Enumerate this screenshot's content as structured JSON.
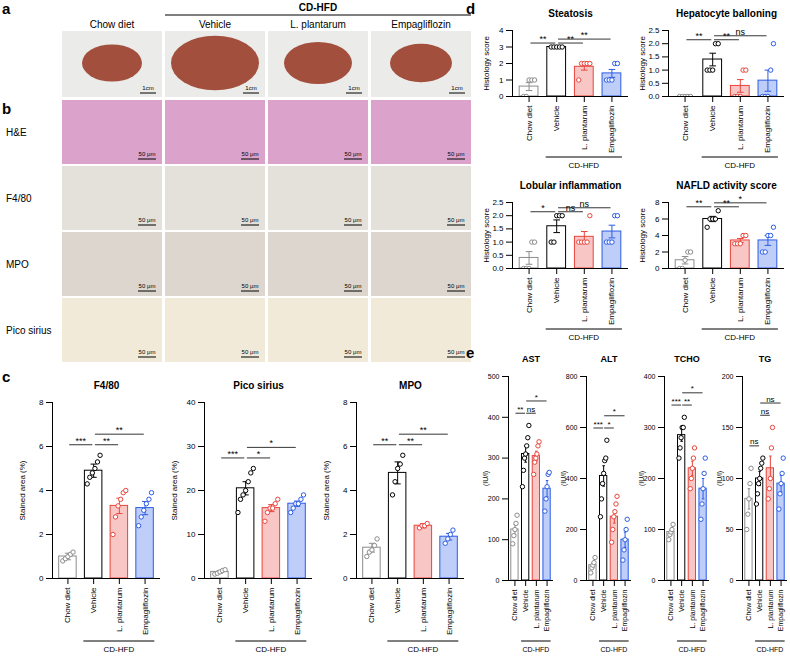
{
  "panel_a": {
    "label": "a",
    "columns": [
      "Chow diet",
      "Vehicle",
      "L. plantarum",
      "Empagliflozin"
    ],
    "group": {
      "label": "CD-HFD",
      "columns": [
        "Vehicle",
        "L. plantarum",
        "Empagliflozin"
      ]
    },
    "scale_bar": "1cm"
  },
  "panel_b": {
    "label": "b",
    "rows": [
      "H&E",
      "F4/80",
      "MPO",
      "Pico sirius"
    ],
    "scale_bar": "50 μm"
  },
  "chart_data": [
    {
      "panel": "c",
      "type": "bar",
      "title": "F4/80",
      "y_label": "Stained area (%)",
      "categories": [
        "Chow diet",
        "Vehicle",
        "L. plantarum",
        "Empagliflozin"
      ],
      "group": {
        "label": "CD-HFD",
        "categories": [
          "Vehicle",
          "L. plantarum",
          "Empagliflozin"
        ]
      },
      "colors": [
        "#8c8c8c",
        "#000000",
        "#e8453c",
        "#2b5ce6"
      ],
      "values": [
        1.0,
        4.9,
        3.3,
        3.2
      ],
      "errors": [
        0.15,
        0.3,
        0.35,
        0.3
      ],
      "points": [
        [
          0.8,
          0.9,
          1.0,
          1.1,
          1.2
        ],
        [
          4.3,
          4.6,
          4.8,
          5.0,
          5.3,
          5.6
        ],
        [
          2.0,
          2.8,
          3.3,
          3.6,
          3.9,
          4.0
        ],
        [
          2.4,
          2.8,
          3.1,
          3.4,
          3.6,
          3.9
        ]
      ],
      "significance": [
        {
          "pair": [
            "Chow diet",
            "Vehicle"
          ],
          "label": "***"
        },
        {
          "pair": [
            "Vehicle",
            "L. plantarum"
          ],
          "label": "**"
        },
        {
          "pair": [
            "Vehicle",
            "Empagliflozin"
          ],
          "label": "**"
        }
      ],
      "ylim": [
        0,
        8
      ],
      "yticks": [
        0,
        2,
        4,
        6,
        8
      ]
    },
    {
      "panel": "c",
      "type": "bar",
      "title": "Pico sirius",
      "y_label": "Stained area (%)",
      "categories": [
        "Chow diet",
        "Vehicle",
        "L. plantarum",
        "Empagliflozin"
      ],
      "group": {
        "label": "CD-HFD",
        "categories": [
          "Vehicle",
          "L. plantarum",
          "Empagliflozin"
        ]
      },
      "colors": [
        "#8c8c8c",
        "#000000",
        "#e8453c",
        "#2b5ce6"
      ],
      "values": [
        1.5,
        20.5,
        16,
        17
      ],
      "errors": [
        0.3,
        1.5,
        0.8,
        0.6
      ],
      "points": [
        [
          1.0,
          1.2,
          1.5,
          1.8,
          2.0
        ],
        [
          15,
          18,
          19,
          20,
          22,
          24,
          25
        ],
        [
          13,
          15,
          16,
          16,
          17,
          18
        ],
        [
          15,
          16,
          17,
          17,
          18,
          19
        ]
      ],
      "significance": [
        {
          "pair": [
            "Chow diet",
            "Vehicle"
          ],
          "label": "***"
        },
        {
          "pair": [
            "Vehicle",
            "L. plantarum"
          ],
          "label": "*"
        },
        {
          "pair": [
            "Vehicle",
            "Empagliflozin"
          ],
          "label": "*"
        }
      ],
      "ylim": [
        0,
        40
      ],
      "yticks": [
        0,
        10,
        20,
        30,
        40
      ]
    },
    {
      "panel": "c",
      "type": "bar",
      "title": "MPO",
      "y_label": "Stained area (%)",
      "categories": [
        "Chow diet",
        "Vehicle",
        "L. plantarum",
        "Empagliflozin"
      ],
      "group": {
        "label": "CD-HFD",
        "categories": [
          "Vehicle",
          "L. plantarum",
          "Empagliflozin"
        ]
      },
      "colors": [
        "#8c8c8c",
        "#000000",
        "#e8453c",
        "#2b5ce6"
      ],
      "values": [
        1.4,
        4.8,
        2.4,
        1.9
      ],
      "errors": [
        0.2,
        0.5,
        0.1,
        0.15
      ],
      "points": [
        [
          1.0,
          1.2,
          1.3,
          1.5,
          1.8
        ],
        [
          3.8,
          4.4,
          5.0,
          5.2,
          5.6
        ],
        [
          2.3,
          2.4,
          2.4,
          2.5
        ],
        [
          1.6,
          1.8,
          2.0,
          2.2
        ]
      ],
      "significance": [
        {
          "pair": [
            "Chow diet",
            "Vehicle"
          ],
          "label": "**"
        },
        {
          "pair": [
            "Vehicle",
            "L. plantarum"
          ],
          "label": "**"
        },
        {
          "pair": [
            "Vehicle",
            "Empagliflozin"
          ],
          "label": "**"
        }
      ],
      "ylim": [
        0,
        8
      ],
      "yticks": [
        0,
        2,
        4,
        6,
        8
      ]
    },
    {
      "panel": "d",
      "type": "bar",
      "title": "Steatosis",
      "y_label": "Histology score",
      "categories": [
        "Chow diet",
        "Vehicle",
        "L. plantarum",
        "Empagliflozin"
      ],
      "group": {
        "label": "CD-HFD",
        "categories": [
          "Vehicle",
          "L. plantarum",
          "Empagliflozin"
        ]
      },
      "colors": [
        "#8c8c8c",
        "#000000",
        "#e8453c",
        "#2b5ce6"
      ],
      "values": [
        0.6,
        3.0,
        1.8,
        1.4
      ],
      "errors": [
        0.24,
        0,
        0.2,
        0.24
      ],
      "points": [
        [
          0,
          0,
          1,
          1,
          1
        ],
        [
          3,
          3,
          3,
          3,
          3
        ],
        [
          1,
          2,
          2,
          2,
          2
        ],
        [
          1,
          1,
          1,
          2,
          2
        ]
      ],
      "significance": [
        {
          "pair": [
            "Chow diet",
            "Vehicle"
          ],
          "label": "**"
        },
        {
          "pair": [
            "Vehicle",
            "L. plantarum"
          ],
          "label": "**"
        },
        {
          "pair": [
            "Vehicle",
            "Empagliflozin"
          ],
          "label": "**"
        }
      ],
      "ylim": [
        0,
        4
      ],
      "yticks": [
        0,
        1,
        2,
        3,
        4
      ]
    },
    {
      "panel": "d",
      "type": "bar",
      "title": "Hepatocyte balloning",
      "y_label": "Histology score",
      "categories": [
        "Chow diet",
        "Vehicle",
        "L. plantarum",
        "Empagliflozin"
      ],
      "group": {
        "label": "CD-HFD",
        "categories": [
          "Vehicle",
          "L. plantarum",
          "Empagliflozin"
        ]
      },
      "colors": [
        "#8c8c8c",
        "#000000",
        "#e8453c",
        "#2b5ce6"
      ],
      "values": [
        0,
        1.4,
        0.4,
        0.6
      ],
      "errors": [
        0,
        0.24,
        0.24,
        0.4
      ],
      "points": [
        [
          0,
          0,
          0,
          0,
          0
        ],
        [
          1,
          1,
          1,
          2,
          2
        ],
        [
          0,
          0,
          0,
          1,
          1
        ],
        [
          0,
          0,
          0,
          1,
          2
        ]
      ],
      "significance": [
        {
          "pair": [
            "Chow diet",
            "Vehicle"
          ],
          "label": "**"
        },
        {
          "pair": [
            "Vehicle",
            "L. plantarum"
          ],
          "label": "**"
        },
        {
          "pair": [
            "Vehicle",
            "Empagliflozin"
          ],
          "label": "ns"
        }
      ],
      "ylim": [
        0,
        2.5
      ],
      "yticks": [
        {
          "value": 0,
          "label": "0.0"
        },
        {
          "value": 0.5,
          "label": "0.5"
        },
        {
          "value": 1,
          "label": "1.0"
        },
        {
          "value": 1.5,
          "label": "1.5"
        },
        {
          "value": 2,
          "label": "2.0"
        },
        {
          "value": 2.5,
          "label": "2.5"
        }
      ]
    },
    {
      "panel": "d",
      "type": "bar",
      "title": "Lobular inflammation",
      "y_label": "Histology score",
      "categories": [
        "Chow diet",
        "Vehicle",
        "L. plantarum",
        "Empagliflozin"
      ],
      "group": {
        "label": "CD-HFD",
        "categories": [
          "Vehicle",
          "L. plantarum",
          "Empagliflozin"
        ]
      },
      "colors": [
        "#8c8c8c",
        "#000000",
        "#e8453c",
        "#2b5ce6"
      ],
      "values": [
        0.4,
        1.6,
        1.2,
        1.4
      ],
      "errors": [
        0.24,
        0.24,
        0.2,
        0.24
      ],
      "points": [
        [
          0,
          0,
          0,
          1,
          1
        ],
        [
          1,
          1,
          2,
          2,
          2
        ],
        [
          1,
          1,
          1,
          1,
          2
        ],
        [
          1,
          1,
          1,
          2,
          2
        ]
      ],
      "significance": [
        {
          "pair": [
            "Chow diet",
            "Vehicle"
          ],
          "label": "*"
        },
        {
          "pair": [
            "Vehicle",
            "L. plantarum"
          ],
          "label": "ns"
        },
        {
          "pair": [
            "Vehicle",
            "Empagliflozin"
          ],
          "label": "ns"
        }
      ],
      "ylim": [
        0,
        2.5
      ],
      "yticks": [
        {
          "value": 0,
          "label": "0.0"
        },
        {
          "value": 0.5,
          "label": "0.5"
        },
        {
          "value": 1,
          "label": "1.0"
        },
        {
          "value": 1.5,
          "label": "1.5"
        },
        {
          "value": 2,
          "label": "2.0"
        },
        {
          "value": 2.5,
          "label": "2.5"
        }
      ]
    },
    {
      "panel": "d",
      "type": "bar",
      "title": "NAFLD activity score",
      "y_label": "Histology score",
      "categories": [
        "Chow diet",
        "Vehicle",
        "L. plantarum",
        "Empagliflozin"
      ],
      "group": {
        "label": "CD-HFD",
        "categories": [
          "Vehicle",
          "L. plantarum",
          "Empagliflozin"
        ]
      },
      "colors": [
        "#8c8c8c",
        "#000000",
        "#e8453c",
        "#2b5ce6"
      ],
      "values": [
        1.0,
        6.0,
        3.4,
        3.4
      ],
      "errors": [
        0.45,
        0.32,
        0.24,
        0.6
      ],
      "points": [
        [
          0,
          0,
          1,
          2,
          2
        ],
        [
          5,
          6,
          6,
          6,
          7
        ],
        [
          3,
          3,
          3,
          4,
          4
        ],
        [
          2,
          2,
          4,
          4,
          5
        ]
      ],
      "significance": [
        {
          "pair": [
            "Chow diet",
            "Vehicle"
          ],
          "label": "**"
        },
        {
          "pair": [
            "Vehicle",
            "L. plantarum"
          ],
          "label": "**"
        },
        {
          "pair": [
            "Vehicle",
            "Empagliflozin"
          ],
          "label": "*"
        }
      ],
      "ylim": [
        0,
        8
      ],
      "yticks": [
        0,
        2,
        4,
        6,
        8
      ]
    },
    {
      "panel": "e",
      "type": "bar",
      "title": "AST",
      "y_label": "(IU/l)",
      "categories": [
        "Chow diet",
        "Vehicle",
        "L. plantarum",
        "Empagliflozin"
      ],
      "group": {
        "label": "CD-HFD",
        "categories": [
          "Vehicle",
          "L. plantarum",
          "Empagliflozin"
        ]
      },
      "colors": [
        "#8c8c8c",
        "#000000",
        "#e8453c",
        "#2b5ce6"
      ],
      "values": [
        125,
        310,
        305,
        225
      ],
      "errors": [
        12,
        20,
        12,
        20
      ],
      "points": [
        [
          90,
          110,
          125,
          140,
          160
        ],
        [
          230,
          270,
          300,
          310,
          330,
          350,
          380
        ],
        [
          260,
          290,
          300,
          310,
          330,
          340
        ],
        [
          170,
          200,
          230,
          260,
          265
        ]
      ],
      "significance": [
        {
          "pair": [
            "Chow diet",
            "Vehicle"
          ],
          "label": "**"
        },
        {
          "pair": [
            "Vehicle",
            "L. plantarum"
          ],
          "label": "ns"
        },
        {
          "pair": [
            "Vehicle",
            "Empagliflozin"
          ],
          "label": "*"
        }
      ],
      "ylim": [
        0,
        500
      ],
      "yticks": [
        0,
        100,
        200,
        300,
        400,
        500
      ]
    },
    {
      "panel": "e",
      "type": "bar",
      "title": "ALT",
      "y_label": "(IU/l)",
      "categories": [
        "Chow diet",
        "Vehicle",
        "L. plantarum",
        "Empagliflozin"
      ],
      "group": {
        "label": "CD-HFD",
        "categories": [
          "Vehicle",
          "L. plantarum",
          "Empagliflozin"
        ]
      },
      "colors": [
        "#8c8c8c",
        "#000000",
        "#e8453c",
        "#2b5ce6"
      ],
      "values": [
        60,
        410,
        250,
        160
      ],
      "errors": [
        10,
        40,
        25,
        30
      ],
      "points": [
        [
          30,
          50,
          60,
          70,
          90
        ],
        [
          250,
          320,
          380,
          420,
          470,
          480,
          550
        ],
        [
          150,
          200,
          250,
          270,
          300,
          330
        ],
        [
          80,
          120,
          160,
          200,
          240
        ]
      ],
      "significance": [
        {
          "pair": [
            "Chow diet",
            "Vehicle"
          ],
          "label": "***"
        },
        {
          "pair": [
            "Vehicle",
            "L. plantarum"
          ],
          "label": "*"
        },
        {
          "pair": [
            "Vehicle",
            "Empagliflozin"
          ],
          "label": "*"
        }
      ],
      "ylim": [
        0,
        800
      ],
      "yticks": [
        0,
        200,
        400,
        600,
        800
      ]
    },
    {
      "panel": "e",
      "type": "bar",
      "title": "TCHO",
      "y_label": "(IU/l)",
      "categories": [
        "Chow diet",
        "Vehicle",
        "L. plantarum",
        "Empagliflozin"
      ],
      "group": {
        "label": "CD-HFD",
        "categories": [
          "Vehicle",
          "L. plantarum",
          "Empagliflozin"
        ]
      },
      "colors": [
        "#8c8c8c",
        "#000000",
        "#e8453c",
        "#2b5ce6"
      ],
      "values": [
        95,
        285,
        220,
        180
      ],
      "errors": [
        5,
        12,
        14,
        20
      ],
      "points": [
        [
          80,
          90,
          95,
          100,
          110
        ],
        [
          240,
          260,
          280,
          300,
          300,
          320
        ],
        [
          180,
          200,
          220,
          240,
          260
        ],
        [
          120,
          150,
          180,
          210,
          240
        ]
      ],
      "significance": [
        {
          "pair": [
            "Chow diet",
            "Vehicle"
          ],
          "label": "***"
        },
        {
          "pair": [
            "Vehicle",
            "L. plantarum"
          ],
          "label": "**"
        },
        {
          "pair": [
            "Vehicle",
            "Empagliflozin"
          ],
          "label": "*"
        }
      ],
      "ylim": [
        0,
        400
      ],
      "yticks": [
        0,
        100,
        200,
        300,
        400
      ]
    },
    {
      "panel": "e",
      "type": "bar",
      "title": "TG",
      "y_label": "(IU/l)",
      "categories": [
        "Chow diet",
        "Vehicle",
        "L. plantarum",
        "Empagliflozin"
      ],
      "group": {
        "label": "CD-HFD",
        "categories": [
          "Vehicle",
          "L. plantarum",
          "Empagliflozin"
        ]
      },
      "colors": [
        "#8c8c8c",
        "#000000",
        "#e8453c",
        "#2b5ce6"
      ],
      "values": [
        80,
        100,
        110,
        95
      ],
      "errors": [
        10,
        7,
        12,
        8
      ],
      "points": [
        [
          50,
          65,
          80,
          95,
          110
        ],
        [
          75,
          85,
          95,
          100,
          110,
          115,
          120
        ],
        [
          80,
          90,
          100,
          130,
          150
        ],
        [
          70,
          85,
          95,
          105,
          120
        ]
      ],
      "significance": [
        {
          "pair": [
            "Chow diet",
            "Vehicle"
          ],
          "label": "ns"
        },
        {
          "pair": [
            "Vehicle",
            "L. plantarum"
          ],
          "label": "ns"
        },
        {
          "pair": [
            "Vehicle",
            "Empagliflozin"
          ],
          "label": "ns"
        }
      ],
      "ylim": [
        0,
        200
      ],
      "yticks": [
        0,
        50,
        100,
        150,
        200
      ]
    }
  ]
}
